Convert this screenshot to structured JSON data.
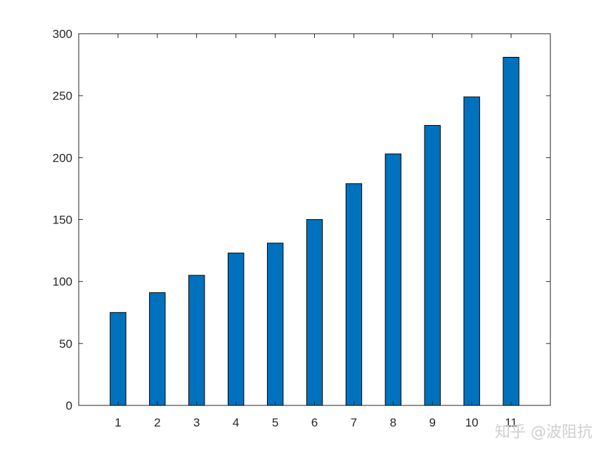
{
  "chart_data": {
    "type": "bar",
    "categories": [
      "1",
      "2",
      "3",
      "4",
      "5",
      "6",
      "7",
      "8",
      "9",
      "10",
      "11"
    ],
    "values": [
      75,
      91,
      105,
      123,
      131,
      150,
      179,
      203,
      226,
      249,
      281
    ],
    "ylim": [
      0,
      300
    ],
    "yticks": [
      0,
      50,
      100,
      150,
      200,
      250,
      300
    ],
    "title": "",
    "xlabel": "",
    "ylabel": "",
    "grid": false,
    "bar_color": "#0072BD",
    "bar_edge_color": "#000000"
  },
  "watermark": "知乎 @波阻抗"
}
